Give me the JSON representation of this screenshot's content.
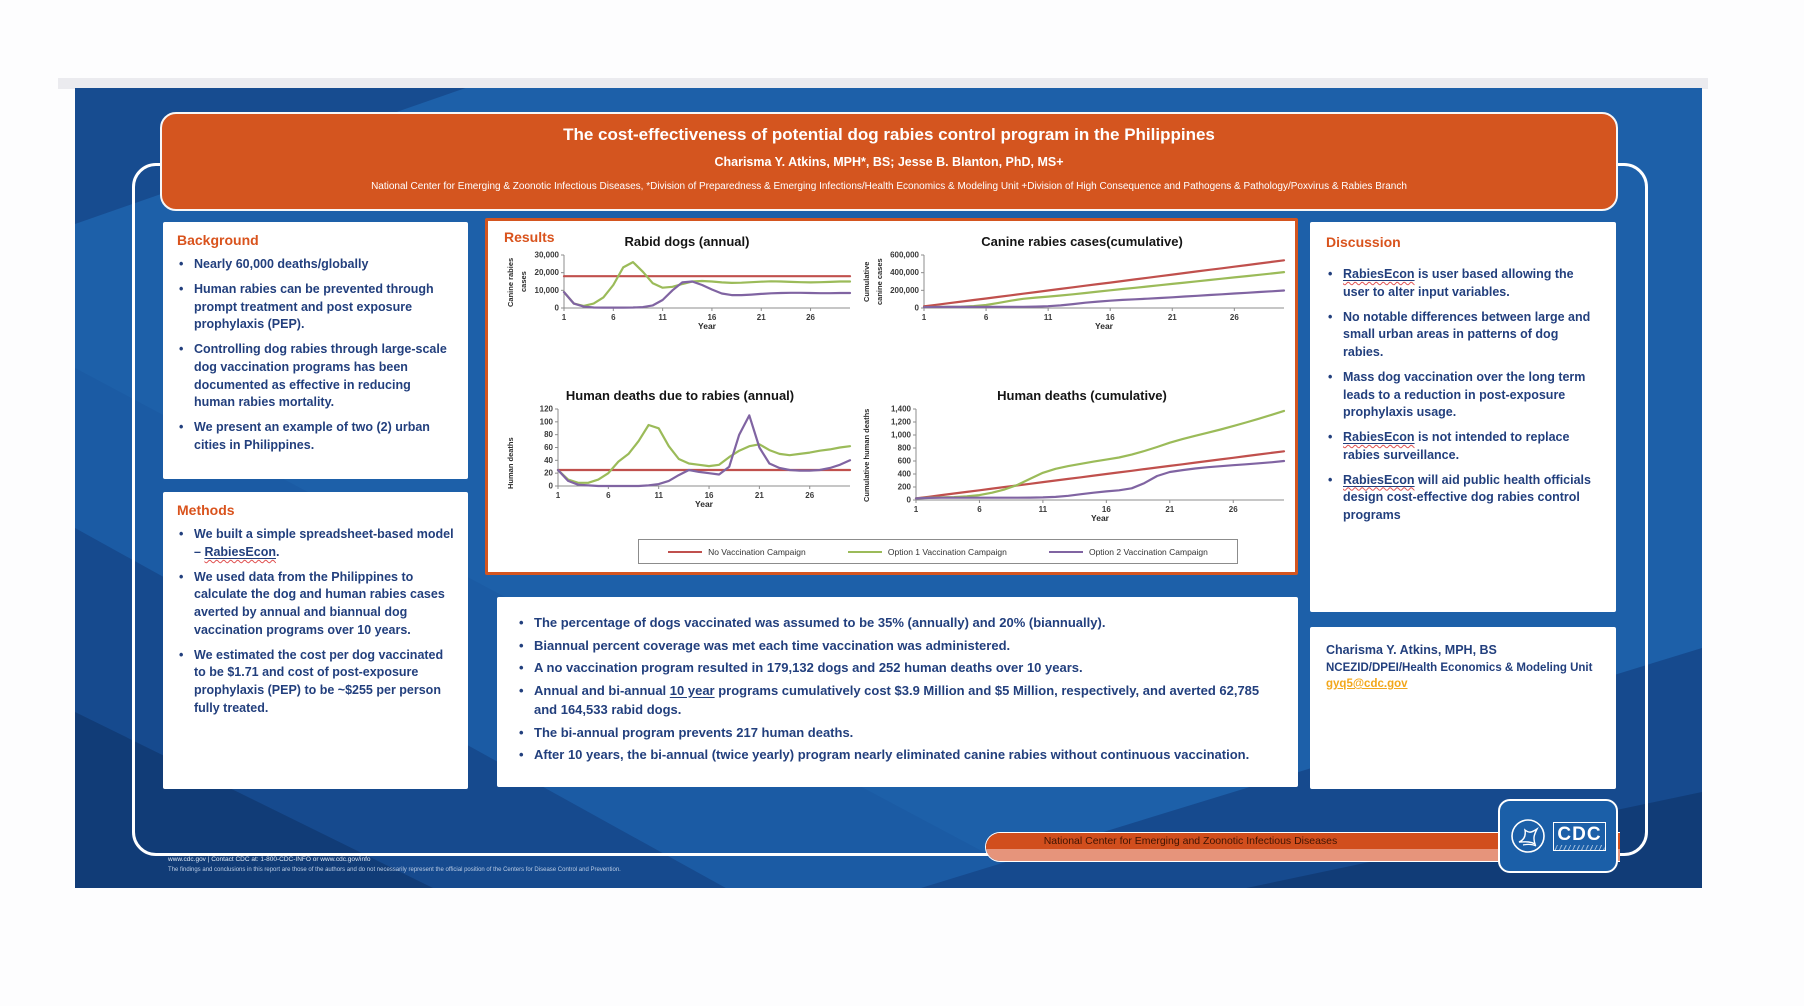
{
  "theme": {
    "poster_blue": "#1d60a9",
    "header_orange": "#d4551f",
    "heading_orange": "#d9531d",
    "text_blue": "#223f7d",
    "link_gold": "#f2a71b",
    "footer_bar_top": "#d14e1d",
    "footer_bar_bottom": "#e6947b"
  },
  "header": {
    "title": "The cost-effectiveness of potential dog rabies control program in the Philippines",
    "authors": "Charisma Y. Atkins, MPH*, BS; Jesse B. Blanton, PhD, MS+",
    "affiliation": "National Center for Emerging & Zoonotic Infectious Diseases, *Division of Preparedness & Emerging Infections/Health Economics & Modeling Unit +Division of High Consequence and Pathogens & Pathology/Poxvirus & Rabies Branch"
  },
  "background": {
    "heading": "Background",
    "bullets": [
      "Nearly 60,000 deaths/globally",
      "Human rabies can be prevented through prompt treatment and post exposure prophylaxis (PEP).",
      "Controlling dog rabies through large-scale dog vaccination programs has been documented as effective in reducing human rabies mortality.",
      "We present an example of two (2) urban cities in Philippines."
    ]
  },
  "methods": {
    "heading": "Methods",
    "bullets": [
      [
        {
          "t": "We built a simple spreadsheet-based model – "
        },
        {
          "t": "RabiesEcon",
          "u": 1,
          "w": 1
        },
        {
          "t": "."
        }
      ],
      "We used data from the Philippines to calculate the dog and human rabies cases averted by annual and biannual dog vaccination programs over 10 years.",
      "We estimated the cost per dog vaccinated to be $1.71 and cost of post-exposure prophylaxis (PEP) to be ~$255 per person fully treated."
    ]
  },
  "results": {
    "heading": "Results"
  },
  "findings": {
    "bullets": [
      "The percentage of dogs vaccinated was assumed to be 35% (annually) and 20% (biannually).",
      "Biannual percent coverage was met each time vaccination was administered.",
      "A no vaccination program resulted in 179,132 dogs and 252 human deaths over 10 years.",
      [
        {
          "t": "Annual and bi-annual "
        },
        {
          "t": "10 year",
          "u": 1
        },
        {
          "t": " programs cumulatively cost $3.9 Million and $5 Million, respectively, and averted 62,785 and 164,533 rabid dogs."
        }
      ],
      " The bi-annual program prevents 217 human deaths.",
      "After 10 years, the bi-annual (twice yearly) program nearly eliminated canine rabies without continuous vaccination."
    ]
  },
  "discussion": {
    "heading": "Discussion",
    "bullets": [
      [
        {
          "t": "RabiesEcon",
          "u": 1,
          "w": 1
        },
        {
          "t": " is user based allowing the user to alter input variables."
        }
      ],
      "No notable differences between large and small urban areas in patterns of dog rabies.",
      "Mass dog vaccination over the long term leads to a reduction in post-exposure prophylaxis usage.",
      [
        {
          "t": "RabiesEcon",
          "u": 1,
          "w": 1
        },
        {
          "t": " is not intended to replace rabies surveillance."
        }
      ],
      [
        {
          "t": "RabiesEcon",
          "u": 1,
          "w": 1
        },
        {
          "t": " will aid public health officials design cost-effective dog rabies control programs"
        }
      ]
    ]
  },
  "contact": {
    "name": "Charisma Y. Atkins, MPH, BS",
    "unit": "NCEZID/DPEI/Health Economics & Modeling Unit",
    "email": "gyq5@cdc.gov"
  },
  "footer": {
    "bar_text": "National Center for Emerging and Zoonotic Infectious Diseases",
    "cdc_text": "CDC",
    "line1": "www.cdc.gov | Contact CDC at: 1-800-CDC-INFO or www.cdc.gov/info",
    "line2": "The findings and conclusions in this report are those of the authors and do not necessarily represent the official position of the Centers for Disease Control and Prevention."
  },
  "legend": {
    "entries": [
      {
        "label": "No Vaccination Campaign",
        "color": "#C0504D"
      },
      {
        "label": "Option 1 Vaccination Campaign",
        "color": "#9BBB59"
      },
      {
        "label": "Option 2 Vaccination Campaign",
        "color": "#8064A2"
      }
    ]
  },
  "chart_data": [
    {
      "type": "line",
      "title": "Rabid dogs (annual)",
      "xlabel": "Year",
      "ylabel": "Canine rabies cases",
      "xlim": [
        1,
        30
      ],
      "ylim": [
        0,
        30000
      ],
      "yticks": [
        0,
        10000,
        20000,
        30000
      ],
      "xticks": [
        1,
        6,
        11,
        16,
        21,
        26
      ],
      "ml": 46,
      "x": [
        1,
        2,
        3,
        4,
        5,
        6,
        7,
        8,
        9,
        10,
        11,
        12,
        13,
        14,
        15,
        16,
        17,
        18,
        19,
        20,
        21,
        22,
        23,
        24,
        25,
        26,
        27,
        28,
        29,
        30
      ],
      "series": [
        {
          "name": "No Vaccination Campaign",
          "color": "#C0504D",
          "values": [
            18000,
            18000,
            18000,
            18000,
            18000,
            18000,
            18000,
            18000,
            18000,
            18000,
            18000,
            18000,
            18000,
            18000,
            18000,
            18000,
            18000,
            18000,
            18000,
            18000,
            18000,
            18000,
            18000,
            18000,
            18000,
            18000,
            18000,
            18000,
            18000,
            18000
          ]
        },
        {
          "name": "Option 1 Vaccination Campaign",
          "color": "#9BBB59",
          "values": [
            9000,
            2500,
            1200,
            2500,
            6000,
            13000,
            23000,
            26000,
            20500,
            14000,
            11500,
            12000,
            13600,
            15000,
            15300,
            15000,
            14500,
            14200,
            14300,
            14600,
            14900,
            15100,
            15000,
            14800,
            14600,
            14500,
            14600,
            14800,
            15000,
            15000
          ]
        },
        {
          "name": "Option 2 Vaccination Campaign",
          "color": "#8064A2",
          "values": [
            9000,
            2500,
            800,
            300,
            200,
            200,
            200,
            300,
            500,
            1500,
            4500,
            10000,
            14500,
            15000,
            13000,
            10500,
            8200,
            7300,
            7300,
            7600,
            8000,
            8300,
            8500,
            8600,
            8600,
            8500,
            8400,
            8400,
            8500,
            8500
          ]
        }
      ]
    },
    {
      "type": "line",
      "title": "Canine rabies cases(cumulative)",
      "xlabel": "Year",
      "ylabel": "Cumulative canine cases",
      "xlim": [
        1,
        30
      ],
      "ylim": [
        0,
        600000
      ],
      "yticks": [
        0,
        200000,
        400000,
        600000
      ],
      "xticks": [
        1,
        6,
        11,
        16,
        21,
        26
      ],
      "ml": 50,
      "x": [
        1,
        2,
        3,
        4,
        5,
        6,
        7,
        8,
        9,
        10,
        11,
        12,
        13,
        14,
        15,
        16,
        17,
        18,
        19,
        20,
        21,
        22,
        23,
        24,
        25,
        26,
        27,
        28,
        29,
        30
      ],
      "series": [
        {
          "name": "No Vaccination Campaign",
          "color": "#C0504D",
          "values": [
            18000,
            36000,
            54000,
            72000,
            90000,
            108000,
            126000,
            144000,
            162000,
            180000,
            198000,
            216000,
            234000,
            252000,
            270000,
            288000,
            306000,
            324000,
            342000,
            360000,
            378000,
            396000,
            414000,
            432000,
            450000,
            468000,
            486000,
            504000,
            522000,
            540000
          ]
        },
        {
          "name": "Option 1 Vaccination Campaign",
          "color": "#9BBB59",
          "values": [
            9000,
            11500,
            12700,
            15200,
            21200,
            34200,
            57200,
            83200,
            103700,
            117700,
            129200,
            141200,
            154800,
            169800,
            185100,
            200100,
            214600,
            228800,
            243100,
            257700,
            272600,
            287700,
            302700,
            317500,
            332100,
            346600,
            361200,
            376000,
            391000,
            406000
          ]
        },
        {
          "name": "Option 2 Vaccination Campaign",
          "color": "#8064A2",
          "values": [
            9000,
            11500,
            12300,
            12600,
            12800,
            13000,
            13200,
            13500,
            14000,
            15500,
            20000,
            30000,
            44500,
            59500,
            72500,
            83000,
            91200,
            98500,
            105800,
            113400,
            121400,
            129700,
            138200,
            146800,
            155400,
            163900,
            172300,
            180700,
            189200,
            197700
          ]
        }
      ]
    },
    {
      "type": "line",
      "title": "Human deaths due to rabies (annual)",
      "xlabel": "Year",
      "ylabel": "Human deaths",
      "xlim": [
        1,
        30
      ],
      "ylim": [
        0,
        120
      ],
      "yticks": [
        0,
        20,
        40,
        60,
        80,
        100,
        120
      ],
      "xticks": [
        1,
        6,
        11,
        16,
        21,
        26
      ],
      "ml": 40,
      "x": [
        1,
        2,
        3,
        4,
        5,
        6,
        7,
        8,
        9,
        10,
        11,
        12,
        13,
        14,
        15,
        16,
        17,
        18,
        19,
        20,
        21,
        22,
        23,
        24,
        25,
        26,
        27,
        28,
        29,
        30
      ],
      "series": [
        {
          "name": "No Vaccination Campaign",
          "color": "#C0504D",
          "values": [
            25,
            25,
            25,
            25,
            25,
            25,
            25,
            25,
            25,
            25,
            25,
            25,
            25,
            25,
            25,
            25,
            25,
            25,
            25,
            25,
            25,
            25,
            25,
            25,
            25,
            25,
            25,
            25,
            25,
            25
          ]
        },
        {
          "name": "Option 1 Vaccination Campaign",
          "color": "#9BBB59",
          "values": [
            25,
            10,
            5,
            5,
            10,
            20,
            38,
            50,
            70,
            95,
            90,
            62,
            42,
            35,
            33,
            31,
            33,
            45,
            55,
            62,
            65,
            56,
            50,
            48,
            50,
            52,
            55,
            57,
            60,
            62
          ]
        },
        {
          "name": "Option 2 Vaccination Campaign",
          "color": "#8064A2",
          "values": [
            25,
            8,
            2,
            1,
            0,
            0,
            0,
            0,
            0,
            1,
            3,
            8,
            17,
            25,
            22,
            20,
            18,
            30,
            80,
            110,
            60,
            35,
            28,
            25,
            24,
            24,
            25,
            28,
            33,
            40
          ]
        }
      ]
    },
    {
      "type": "line",
      "title": "Human deaths (cumulative)",
      "xlabel": "Year",
      "ylabel": "Cumulative human deaths",
      "xlim": [
        1,
        30
      ],
      "ylim": [
        0,
        1400
      ],
      "yticks": [
        0,
        200,
        400,
        600,
        800,
        1000,
        1200,
        1400
      ],
      "xticks": [
        1,
        6,
        11,
        16,
        21,
        26
      ],
      "ml": 42,
      "x": [
        1,
        2,
        3,
        4,
        5,
        6,
        7,
        8,
        9,
        10,
        11,
        12,
        13,
        14,
        15,
        16,
        17,
        18,
        19,
        20,
        21,
        22,
        23,
        24,
        25,
        26,
        27,
        28,
        29,
        30
      ],
      "series": [
        {
          "name": "No Vaccination Campaign",
          "color": "#C0504D",
          "values": [
            25,
            50,
            75,
            100,
            125,
            150,
            175,
            200,
            225,
            250,
            275,
            300,
            325,
            350,
            375,
            400,
            425,
            450,
            475,
            500,
            525,
            550,
            575,
            600,
            625,
            650,
            675,
            700,
            725,
            750
          ]
        },
        {
          "name": "Option 1 Vaccination Campaign",
          "color": "#9BBB59",
          "values": [
            25,
            35,
            40,
            45,
            55,
            75,
            113,
            163,
            233,
            328,
            418,
            480,
            522,
            557,
            590,
            621,
            654,
            699,
            754,
            816,
            881,
            937,
            987,
            1035,
            1085,
            1137,
            1192,
            1249,
            1309,
            1371
          ]
        },
        {
          "name": "Option 2 Vaccination Campaign",
          "color": "#8064A2",
          "values": [
            25,
            33,
            35,
            36,
            36,
            36,
            36,
            36,
            36,
            37,
            40,
            48,
            65,
            90,
            112,
            132,
            150,
            180,
            260,
            370,
            430,
            460,
            485,
            505,
            520,
            535,
            550,
            565,
            580,
            600
          ]
        }
      ]
    }
  ]
}
